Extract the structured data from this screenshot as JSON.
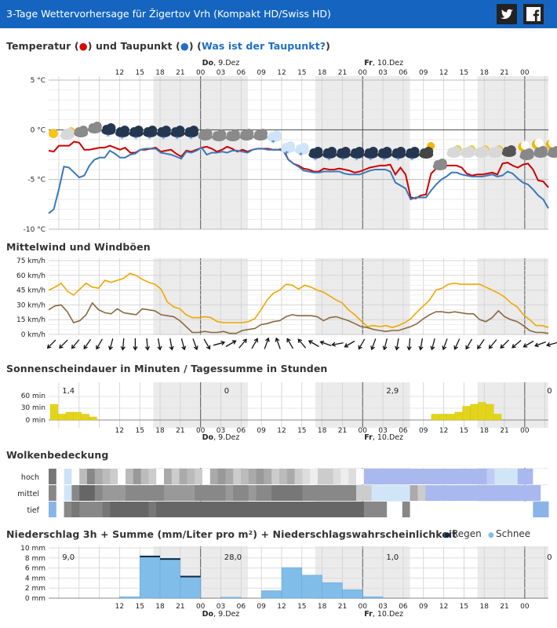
{
  "header": {
    "title": "3-Tage Wettervorhersage für Žigertov Vrh  (Kompakt HD/Swiss HD)",
    "twitter_icon": "twitter-icon",
    "facebook_icon": "facebook-icon"
  },
  "sections": {
    "temperature": {
      "title_part1": "Temperatur (",
      "dot1": "●",
      "title_part2": ") und Taupunkt (",
      "dot2": "●",
      "title_part3": ") (",
      "link": "Was ist der Taupunkt?",
      "title_part4": ")"
    },
    "wind": {
      "title": "Mittelwind und Windböen"
    },
    "sun": {
      "title": "Sonnenscheindauer in Minuten / Tagessumme in Stunden"
    },
    "clouds": {
      "title": "Wolkenbedeckung",
      "rows": [
        "hoch",
        "mittel",
        "tief"
      ]
    },
    "precip": {
      "title": "Niederschlag 3h + Summe (mm/Liter pro m²) + Niederschlagswahrscheinlichkeit",
      "legend_rain": "Regen",
      "legend_snow": "Schnee"
    }
  },
  "time_axis": {
    "hours": [
      "12",
      "15",
      "18",
      "21",
      "00",
      "03",
      "06",
      "09",
      "12",
      "15",
      "18",
      "21",
      "00",
      "03",
      "06",
      "09",
      "12",
      "15",
      "18",
      "21",
      "00"
    ],
    "day_labels": [
      {
        "bold": "Do",
        "rest": ", 9.Dez"
      },
      {
        "bold": "Fr",
        "rest": ", 10.Dez"
      }
    ]
  },
  "chart_data": [
    {
      "type": "line",
      "name": "temperature",
      "ylabels": [
        "5 °C",
        "0 °C",
        "-5 °C",
        "-10 °C"
      ],
      "ylim": [
        -10,
        5
      ],
      "series": [
        {
          "color": "#cc0000",
          "values": [
            -2.1,
            -2.2,
            -1.6,
            -1.6,
            -1.6,
            -1.2,
            -1.3,
            -2.0,
            -2.0,
            -1.9,
            -1.8,
            -1.8,
            -1.6,
            -1.8,
            -2.0,
            -1.8,
            -2.3,
            -2.3,
            -2.0,
            -2.0,
            -1.9,
            -1.8,
            -2.2,
            -2.1,
            -2.0,
            -2.4,
            -2.7,
            -2.1,
            -2.2,
            -2.0,
            -1.8,
            -1.7,
            -1.9,
            -2.2,
            -2.0,
            -1.7,
            -1.9,
            -2.2,
            -2.0,
            -2.2,
            -2.0,
            -1.9,
            -1.9,
            -1.9,
            -2.0,
            -2.0,
            -1.9,
            -3.0,
            -3.4,
            -3.6,
            -3.9,
            -4.0,
            -4.2,
            -4.2,
            -3.9,
            -4.0,
            -4.0,
            -3.9,
            -4.0,
            -4.1,
            -4.3,
            -4.2,
            -4.0,
            -3.8,
            -3.7,
            -3.6,
            -3.6,
            -3.5,
            -4.5,
            -3.8,
            -4.5,
            -6.8,
            -6.9,
            -6.6,
            -6.5,
            -4.4,
            -3.9,
            -3.6,
            -3.6,
            -3.6,
            -3.6,
            -3.8,
            -4.4,
            -4.6,
            -4.5,
            -4.5,
            -4.4,
            -4.3,
            -4.5,
            -3.4,
            -3.3,
            -3.6,
            -3.8,
            -3.5,
            -3.4,
            -4.0,
            -5.1,
            -5.2,
            -5.8
          ]
        },
        {
          "color": "#3a78b8",
          "values": [
            -8.4,
            -8.0,
            -6.0,
            -3.7,
            -3.8,
            -4.3,
            -4.8,
            -4.6,
            -3.6,
            -3.0,
            -2.8,
            -2.8,
            -2.1,
            -2.4,
            -2.8,
            -2.8,
            -2.5,
            -2.4,
            -2.0,
            -1.9,
            -1.9,
            -1.9,
            -2.3,
            -2.4,
            -2.5,
            -2.7,
            -2.9,
            -2.2,
            -2.3,
            -2.1,
            -1.8,
            -2.5,
            -2.3,
            -2.3,
            -2.2,
            -2.3,
            -2.1,
            -2.1,
            -2.2,
            -2.3,
            -2.0,
            -1.9,
            -1.9,
            -2.0,
            -2.0,
            -2.0,
            -2.1,
            -3.0,
            -3.4,
            -3.7,
            -4.1,
            -4.2,
            -4.3,
            -4.3,
            -4.2,
            -4.2,
            -4.2,
            -4.2,
            -4.4,
            -4.5,
            -4.5,
            -4.5,
            -4.3,
            -4.1,
            -4.0,
            -4.0,
            -4.0,
            -4.2,
            -5.3,
            -5.6,
            -5.9,
            -7.0,
            -6.8,
            -6.8,
            -6.8,
            -6.1,
            -5.5,
            -5.0,
            -4.7,
            -4.3,
            -4.3,
            -4.5,
            -4.6,
            -4.7,
            -4.7,
            -4.7,
            -4.6,
            -4.5,
            -4.7,
            -4.6,
            -4.2,
            -4.4,
            -4.9,
            -5.3,
            -5.5,
            -6.0,
            -6.6,
            -7.0,
            -7.9
          ]
        }
      ],
      "weather_icons": [
        "sun",
        "partly-cloudy",
        "cloudy",
        "cloudy",
        "dark-snow",
        "dark-snow",
        "dark-snow",
        "dark-snow",
        "dark-snow",
        "dark-snow",
        "dark-snow",
        "cloudy",
        "cloudy",
        "cloudy",
        "cloudy",
        "cloudy",
        "snow",
        "snow",
        "snow",
        "dark-snow",
        "dark-snow",
        "dark-snow",
        "dark-snow",
        "dark-snow",
        "dark-snow",
        "dark-snow",
        "dark-snow",
        "moon-cloud",
        "cloudy",
        "partly-cloudy",
        "partly-cloudy",
        "partly-cloudy",
        "partly-cloudy",
        "dark-cloud",
        "moon",
        "moon",
        "moon"
      ]
    },
    {
      "type": "line",
      "name": "wind",
      "ylabels": [
        "75 km/h",
        "60 km/h",
        "45 km/h",
        "30 km/h",
        "15 km/h",
        "0 km/h"
      ],
      "ylim": [
        0,
        75
      ],
      "series": [
        {
          "color": "#f0a800",
          "values": [
            45,
            48,
            52,
            44,
            40,
            46,
            52,
            48,
            47,
            55,
            53,
            55,
            57,
            62,
            60,
            56,
            53,
            51,
            46,
            33,
            28,
            26,
            20,
            17,
            17,
            18,
            17,
            13,
            12,
            12,
            12,
            12,
            13,
            16,
            25,
            35,
            42,
            45,
            51,
            50,
            46,
            50,
            48,
            45,
            43,
            39,
            35,
            32,
            25,
            20,
            14,
            8,
            9,
            8,
            9,
            7,
            9,
            12,
            16,
            23,
            29,
            35,
            45,
            47,
            51,
            52,
            51,
            51,
            51,
            51,
            48,
            45,
            42,
            38,
            32,
            28,
            20,
            15,
            9,
            9,
            7
          ]
        },
        {
          "color": "#8a6a40",
          "values": [
            25,
            29,
            30,
            23,
            12,
            14,
            20,
            32,
            25,
            22,
            21,
            26,
            22,
            21,
            20,
            26,
            25,
            24,
            20,
            19,
            18,
            14,
            8,
            2,
            2,
            3,
            2,
            2,
            3,
            1,
            1,
            4,
            5,
            6,
            10,
            11,
            13,
            14,
            18,
            20,
            19,
            19,
            19,
            18,
            14,
            17,
            18,
            16,
            14,
            11,
            8,
            7,
            5,
            4,
            3,
            4,
            4,
            6,
            8,
            11,
            16,
            20,
            23,
            23,
            22,
            23,
            22,
            21,
            21,
            15,
            13,
            17,
            24,
            18,
            15,
            13,
            9,
            4,
            2,
            2,
            1
          ]
        }
      ],
      "arrows": [
        225,
        225,
        220,
        215,
        210,
        195,
        185,
        180,
        175,
        170,
        170,
        165,
        160,
        150,
        75,
        60,
        40,
        30,
        20,
        340,
        330,
        320,
        300,
        290,
        260,
        240,
        210,
        200,
        195,
        190,
        185,
        190,
        195,
        200,
        205,
        210,
        215,
        220,
        225,
        230,
        240,
        250,
        255
      ]
    },
    {
      "type": "bar",
      "name": "sunshine",
      "ylabels": [
        "60 min",
        "30 min",
        "0 min"
      ],
      "ylim": [
        0,
        90
      ],
      "day_totals": [
        "1,4",
        "0",
        "2,9",
        "0"
      ],
      "bars": [
        {
          "x0": 0,
          "x1": 1,
          "value": 40
        },
        {
          "x0": 1,
          "x1": 2,
          "value": 15
        },
        {
          "x0": 2,
          "x1": 3,
          "value": 20
        },
        {
          "x0": 3,
          "x1": 4,
          "value": 20
        },
        {
          "x0": 4,
          "x1": 5,
          "value": 15
        },
        {
          "x0": 5,
          "x1": 6,
          "value": 8
        },
        {
          "x0": 49,
          "x1": 50,
          "value": 15
        },
        {
          "x0": 50,
          "x1": 51,
          "value": 15
        },
        {
          "x0": 51,
          "x1": 52,
          "value": 15
        },
        {
          "x0": 52,
          "x1": 53,
          "value": 20
        },
        {
          "x0": 53,
          "x1": 54,
          "value": 35
        },
        {
          "x0": 54,
          "x1": 55,
          "value": 40
        },
        {
          "x0": 55,
          "x1": 56,
          "value": 45
        },
        {
          "x0": 56,
          "x1": 57,
          "value": 40
        },
        {
          "x0": 57,
          "x1": 58,
          "value": 15
        }
      ]
    },
    {
      "type": "heatmap",
      "name": "clouds",
      "rows": [
        "hoch",
        "mittel",
        "tief"
      ],
      "cells": {
        "hoch": [
          "#777",
          "#fff",
          "#cbe3f5",
          "#fff",
          "#bbb",
          "#888",
          "#aaa",
          "#bbb",
          "#ccc",
          "#fff",
          "#bbb",
          "#999",
          "#bbb",
          "#ccc",
          "#fff",
          "#aaa",
          "#ccc",
          "#aaa",
          "#bbb",
          "#ccc",
          "#fff",
          "#aaa",
          "#999",
          "#aaa",
          "#ccc",
          "#bbb",
          "#aaa",
          "#999",
          "#aaa",
          "#ccc",
          "#bbb",
          "#aaa",
          "#ccc",
          "#ddd",
          "#eee",
          "#ccc",
          "#ccc",
          "#ddd",
          "#eee",
          "#ddd",
          "#fff",
          "#aab8f0",
          "#aab8f0",
          "#aab8f0",
          "#aab8f0",
          "#aab8f0",
          "#aab8f0",
          "#aab8f0",
          "#aab8f0",
          "#aab8f0",
          "#aab8f0",
          "#aab8f0",
          "#aab8f0",
          "#aab8f0",
          "#aab8f0",
          "#aab8f0",
          "#aab8f0",
          "#c0ccf5",
          "#d0e6f8",
          "#d0e6f8",
          "#d0e6f8",
          "#aab8f0",
          "#aab8f0",
          "#fff",
          "#fff"
        ],
        "mittel": [
          "#888",
          "#fff",
          "#d0e6f8",
          "#888",
          "#666",
          "#666",
          "#888",
          "#999",
          "#999",
          "#999",
          "#888",
          "#888",
          "#888",
          "#888",
          "#888",
          "#999",
          "#999",
          "#999",
          "#999",
          "#888",
          "#888",
          "#888",
          "#888",
          "#999",
          "#888",
          "#888",
          "#999",
          "#888",
          "#888",
          "#777",
          "#777",
          "#777",
          "#777",
          "#888",
          "#888",
          "#888",
          "#888",
          "#888",
          "#888",
          "#888",
          "#ccc",
          "#ccc",
          "#d0e6f8",
          "#d0e6f8",
          "#d0e6f8",
          "#d0e6f8",
          "#d0e6f8",
          "#aaa",
          "#ccc",
          "#aab8f0",
          "#aab8f0",
          "#aab8f0",
          "#aab8f0",
          "#aab8f0",
          "#aab8f0",
          "#aab8f0",
          "#aab8f0",
          "#aab8f0",
          "#aab8f0",
          "#aab8f0",
          "#aab8f0",
          "#aab8f0",
          "#aab8f0",
          "#aab8f0",
          "#fff"
        ],
        "tief": [
          "#88b4e8",
          "#fff",
          "#888",
          "#777",
          "#888",
          "#888",
          "#888",
          "#777",
          "#666",
          "#666",
          "#666",
          "#666",
          "#666",
          "#777",
          "#666",
          "#666",
          "#666",
          "#666",
          "#666",
          "#666",
          "#666",
          "#666",
          "#666",
          "#666",
          "#666",
          "#666",
          "#666",
          "#666",
          "#666",
          "#666",
          "#666",
          "#666",
          "#666",
          "#666",
          "#666",
          "#666",
          "#666",
          "#666",
          "#666",
          "#666",
          "#666",
          "#888",
          "#888",
          "#888",
          "#fff",
          "#fff",
          "#888",
          "#fff",
          "#fff",
          "#fff",
          "#fff",
          "#fff",
          "#fff",
          "#fff",
          "#fff",
          "#fff",
          "#fff",
          "#fff",
          "#fff",
          "#fff",
          "#fff",
          "#fff",
          "#fff",
          "#88b4e8",
          "#88b4e8"
        ]
      }
    },
    {
      "type": "bar",
      "name": "precipitation",
      "ylabels": [
        "10 mm",
        "8 mm",
        "6 mm",
        "4 mm",
        "2 mm",
        "0 mm"
      ],
      "ylim": [
        0,
        10
      ],
      "day_totals": [
        "9,0",
        "28,0",
        "1,0",
        "0"
      ],
      "bars": [
        {
          "x0": 3,
          "x1": 4,
          "value": 0.3,
          "rain": 0
        },
        {
          "x0": 4,
          "x1": 5,
          "value": 8.3,
          "rain": 8.3
        },
        {
          "x0": 5,
          "x1": 6,
          "value": 7.8,
          "rain": 7.8
        },
        {
          "x0": 6,
          "x1": 7,
          "value": 4.3,
          "rain": 4.3
        },
        {
          "x0": 8,
          "x1": 9,
          "value": 0.2,
          "rain": 0
        },
        {
          "x0": 10,
          "x1": 11,
          "value": 1.5,
          "rain": 0
        },
        {
          "x0": 11,
          "x1": 12,
          "value": 6.1,
          "rain": 0
        },
        {
          "x0": 12,
          "x1": 13,
          "value": 4.6,
          "rain": 0
        },
        {
          "x0": 13,
          "x1": 14,
          "value": 3.1,
          "rain": 0
        },
        {
          "x0": 14,
          "x1": 15,
          "value": 1.7,
          "rain": 0
        },
        {
          "x0": 15,
          "x1": 16,
          "value": 0.3,
          "rain": 0
        }
      ]
    }
  ]
}
